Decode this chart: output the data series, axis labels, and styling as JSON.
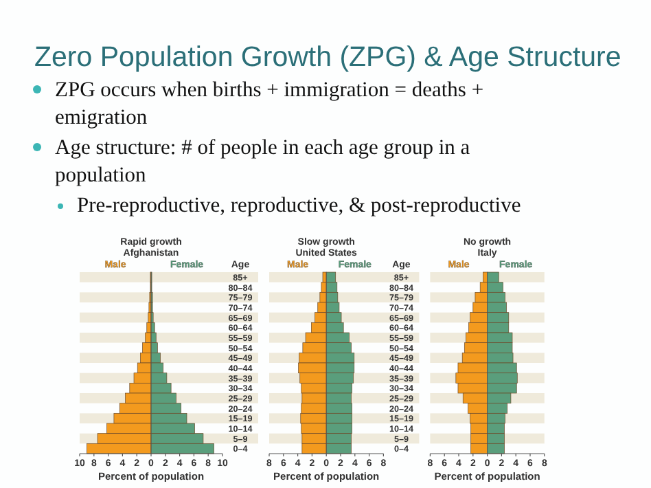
{
  "chart_data": [
    {
      "type": "other",
      "title": "Zero Population Growth (ZPG) & Age Structure",
      "subtitle": "Pre-reproductive, reproductive, & post-reproductive",
      "annotations": [
        "ZPG occurs when births + immigration = deaths + emigration",
        "Age structure: # of people in each age group in a population"
      ]
    },
    {
      "type": "bar",
      "orientation": "horizontal",
      "stacked": true,
      "title": "Rapid growth",
      "subtitle": "Afghanistan",
      "xlabel": "Percent of population",
      "ylabel": "Age",
      "legend": "top",
      "categories": [
        "85+",
        "80–84",
        "75–79",
        "70–74",
        "65–69",
        "60–64",
        "55–59",
        "50–54",
        "45–49",
        "40–44",
        "35–39",
        "30–34",
        "25–29",
        "20–24",
        "15–19",
        "10–14",
        "5–9",
        "0–4"
      ],
      "xlim": [
        -10,
        10
      ],
      "xticks": [
        {
          "value": -10,
          "label": "10"
        },
        {
          "value": -8,
          "label": "8"
        },
        {
          "value": -6,
          "label": "6"
        },
        {
          "value": -4,
          "label": "4"
        },
        {
          "value": -2,
          "label": "2"
        },
        0,
        2,
        4,
        6,
        8,
        10
      ],
      "series": [
        {
          "name": "Male",
          "color": "#f39a1e",
          "values": [
            -0.1,
            -0.1,
            -0.2,
            -0.3,
            -0.4,
            -0.6,
            -0.8,
            -1.2,
            -1.5,
            -1.9,
            -2.4,
            -3.0,
            -3.6,
            -4.4,
            -5.2,
            -6.2,
            -7.5,
            -9.0
          ]
        },
        {
          "name": "Female",
          "color": "#5a9e7c",
          "values": [
            0.1,
            0.1,
            0.2,
            0.2,
            0.3,
            0.5,
            0.7,
            0.9,
            1.3,
            1.7,
            2.2,
            2.8,
            3.5,
            4.2,
            5.0,
            6.1,
            7.3,
            8.8
          ]
        }
      ]
    },
    {
      "type": "bar",
      "orientation": "horizontal",
      "stacked": true,
      "title": "Slow growth",
      "subtitle": "United States",
      "xlabel": "Percent of population",
      "ylabel": "Age",
      "legend": "top",
      "categories": [
        "85+",
        "80–84",
        "75–79",
        "70–74",
        "65–69",
        "60–64",
        "55–59",
        "50–54",
        "45–49",
        "40–44",
        "35–39",
        "30–34",
        "25–29",
        "20–24",
        "15–19",
        "10–14",
        "5–9",
        "0–4"
      ],
      "xlim": [
        -8,
        8
      ],
      "xticks": [
        {
          "value": -8,
          "label": "8"
        },
        {
          "value": -6,
          "label": "6"
        },
        {
          "value": -4,
          "label": "4"
        },
        {
          "value": -2,
          "label": "2"
        },
        0,
        2,
        4,
        6,
        8
      ],
      "series": [
        {
          "name": "Male",
          "color": "#f39a1e",
          "values": [
            -0.5,
            -0.7,
            -0.9,
            -1.2,
            -1.6,
            -2.1,
            -2.9,
            -3.3,
            -3.8,
            -3.9,
            -3.7,
            -3.5,
            -3.4,
            -3.5,
            -3.6,
            -3.5,
            -3.4,
            -3.4
          ]
        },
        {
          "name": "Female",
          "color": "#5a9e7c",
          "values": [
            1.3,
            1.5,
            1.6,
            1.8,
            2.1,
            2.4,
            3.2,
            3.5,
            3.9,
            3.9,
            3.8,
            3.6,
            3.5,
            3.6,
            3.6,
            3.6,
            3.5,
            3.5
          ]
        }
      ]
    },
    {
      "type": "bar",
      "orientation": "horizontal",
      "stacked": true,
      "title": "No growth",
      "subtitle": "Italy",
      "xlabel": "Percent of population",
      "legend": "top",
      "tick_labels": "x",
      "categories": [
        null,
        null,
        null,
        null,
        null,
        null,
        null,
        null,
        null,
        null,
        null,
        null,
        null,
        null,
        null,
        null,
        null,
        null
      ],
      "xlim": [
        -8,
        8
      ],
      "xticks": [
        {
          "value": -8,
          "label": "8"
        },
        {
          "value": -6,
          "label": "6"
        },
        {
          "value": -4,
          "label": "4"
        },
        {
          "value": -2,
          "label": "2"
        },
        0,
        2,
        4,
        6,
        8
      ],
      "series": [
        {
          "name": "Male",
          "color": "#f39a1e",
          "values": [
            -0.6,
            -1.0,
            -1.7,
            -2.0,
            -2.4,
            -2.6,
            -3.0,
            -3.2,
            -3.5,
            -4.1,
            -4.4,
            -4.1,
            -3.4,
            -2.7,
            -2.4,
            -2.3,
            -2.3,
            -2.3
          ]
        },
        {
          "name": "Female",
          "color": "#5a9e7c",
          "values": [
            1.6,
            2.2,
            2.5,
            2.7,
            3.0,
            3.0,
            3.5,
            3.5,
            3.6,
            4.1,
            4.2,
            4.1,
            3.3,
            2.8,
            2.5,
            2.4,
            2.4,
            2.4
          ]
        }
      ]
    }
  ]
}
